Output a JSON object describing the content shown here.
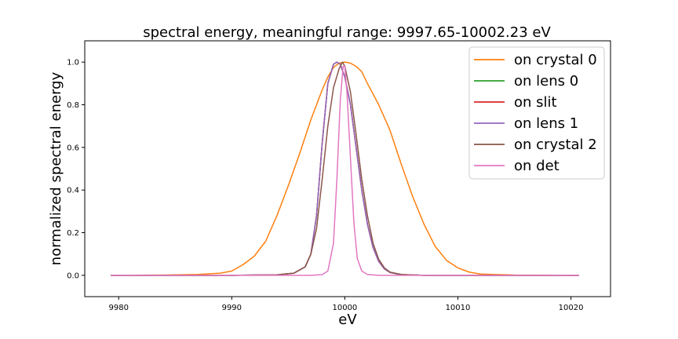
{
  "chart_data": {
    "type": "line",
    "title": "spectral energy, meaningful range: 9997.65-10002.23 eV",
    "xlabel": "eV",
    "ylabel": "normalized spectral energy",
    "xlim": [
      9977.0,
      10023.5
    ],
    "ylim": [
      -0.1,
      1.1
    ],
    "xticks": [
      9980,
      9990,
      10000,
      10010,
      10020
    ],
    "yticks": [
      0.0,
      0.2,
      0.4,
      0.6,
      0.8,
      1.0
    ],
    "grid": false,
    "legend_position": "top-right",
    "series": [
      {
        "name": "on crystal 0",
        "color": "#ff7f0e",
        "x": [
          9979.3,
          9984,
          9987,
          9989,
          9990,
          9991,
          9992,
          9993,
          9994,
          9995,
          9996,
          9997,
          9998,
          9998.5,
          9999,
          9999.5,
          10000,
          10000.5,
          10001,
          10001.5,
          10002,
          10003,
          10004,
          10005,
          10006,
          10007,
          10008,
          10009,
          10010,
          10011,
          10012,
          10015,
          10020.7
        ],
        "y": [
          0.0,
          0.001,
          0.004,
          0.01,
          0.02,
          0.05,
          0.09,
          0.16,
          0.28,
          0.42,
          0.57,
          0.73,
          0.87,
          0.93,
          0.975,
          0.995,
          1.0,
          0.995,
          0.98,
          0.955,
          0.9,
          0.8,
          0.68,
          0.52,
          0.37,
          0.24,
          0.135,
          0.07,
          0.035,
          0.015,
          0.006,
          0.001,
          0.0
        ]
      },
      {
        "name": "on lens 0",
        "color": "#2ca02c",
        "x": [
          9979.3,
          9990,
          9994,
          9995.5,
          9996.5,
          9997,
          9997.5,
          9998,
          9998.5,
          9999,
          9999.3,
          9999.6,
          10000,
          10000.5,
          10001,
          10001.5,
          10002,
          10002.5,
          10003,
          10003.5,
          10004,
          10005,
          10007,
          10010,
          10020.7
        ],
        "y": [
          0.0,
          0.0,
          0.002,
          0.01,
          0.04,
          0.1,
          0.28,
          0.62,
          0.9,
          0.99,
          1.0,
          0.99,
          0.93,
          0.8,
          0.6,
          0.4,
          0.24,
          0.13,
          0.065,
          0.03,
          0.013,
          0.003,
          0.0,
          0.0,
          0.0
        ]
      },
      {
        "name": "on slit",
        "color": "#d62728",
        "x": [
          9979.3,
          9990,
          9994,
          9995.5,
          9996.5,
          9997,
          9997.5,
          9998,
          9998.5,
          9999,
          9999.3,
          9999.6,
          10000,
          10000.5,
          10001,
          10001.5,
          10002,
          10002.5,
          10003,
          10003.5,
          10004,
          10005,
          10007,
          10010,
          10020.7
        ],
        "y": [
          0.0,
          0.0,
          0.002,
          0.01,
          0.04,
          0.1,
          0.28,
          0.62,
          0.9,
          0.99,
          1.0,
          0.99,
          0.93,
          0.8,
          0.6,
          0.4,
          0.24,
          0.13,
          0.065,
          0.03,
          0.013,
          0.003,
          0.0,
          0.0,
          0.0
        ]
      },
      {
        "name": "on lens 1",
        "color": "#9467bd",
        "x": [
          9979.3,
          9990,
          9994,
          9995.5,
          9996.5,
          9997,
          9997.5,
          9998,
          9998.5,
          9999,
          9999.3,
          9999.6,
          10000,
          10000.5,
          10001,
          10001.5,
          10002,
          10002.5,
          10003,
          10003.5,
          10004,
          10005,
          10007,
          10010,
          10020.7
        ],
        "y": [
          0.0,
          0.0,
          0.002,
          0.01,
          0.04,
          0.1,
          0.28,
          0.62,
          0.9,
          0.99,
          1.0,
          0.99,
          0.93,
          0.8,
          0.6,
          0.4,
          0.24,
          0.13,
          0.065,
          0.03,
          0.013,
          0.003,
          0.0,
          0.0,
          0.0
        ]
      },
      {
        "name": "on crystal 2",
        "color": "#8c564b",
        "x": [
          9979.3,
          9990,
          9994,
          9995.5,
          9996.5,
          9997,
          9997.5,
          9998,
          9998.5,
          9999,
          9999.5,
          9999.8,
          10000,
          10000.5,
          10001,
          10001.5,
          10002,
          10002.5,
          10003,
          10003.5,
          10004,
          10005,
          10007,
          10010,
          10020.7
        ],
        "y": [
          0.0,
          0.0,
          0.002,
          0.01,
          0.04,
          0.1,
          0.22,
          0.45,
          0.7,
          0.88,
          0.97,
          1.0,
          0.98,
          0.86,
          0.66,
          0.45,
          0.28,
          0.15,
          0.075,
          0.035,
          0.015,
          0.004,
          0.0,
          0.0,
          0.0
        ]
      },
      {
        "name": "on det",
        "color": "#e377c2",
        "x": [
          9979.3,
          9990,
          9995,
          9997,
          9998,
          9998.5,
          9999,
          9999.3,
          9999.6,
          9999.85,
          10000,
          10000.2,
          10000.5,
          10000.8,
          10001.1,
          10001.5,
          10002,
          10003,
          10010,
          10020.7
        ],
        "y": [
          0.0,
          0.0,
          0.0,
          0.0,
          0.003,
          0.02,
          0.15,
          0.45,
          0.82,
          0.98,
          0.98,
          0.85,
          0.55,
          0.25,
          0.08,
          0.02,
          0.004,
          0.0,
          0.0,
          0.0
        ]
      }
    ]
  }
}
